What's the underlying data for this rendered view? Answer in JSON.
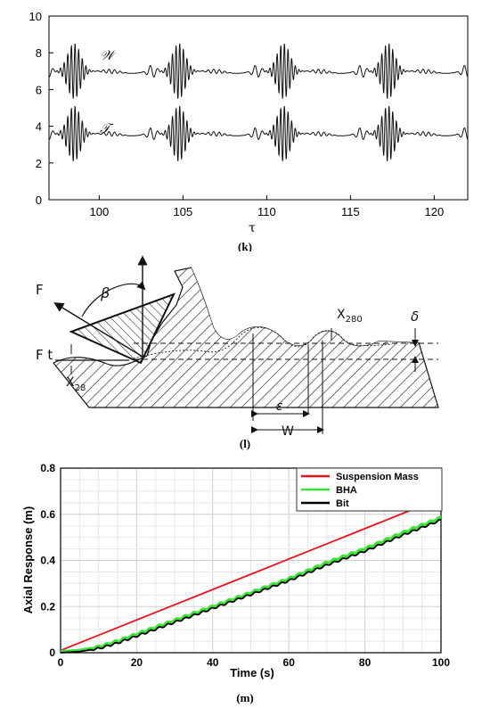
{
  "panel_k": {
    "caption": "(k)",
    "chart_data": {
      "type": "line",
      "xlabel": "τ",
      "ylabel": "",
      "xlim": [
        97,
        122
      ],
      "ylim": [
        0,
        10
      ],
      "xticks": [
        100,
        105,
        110,
        115,
        120
      ],
      "yticks": [
        0,
        2,
        4,
        6,
        8,
        10
      ],
      "grid": false,
      "series": [
        {
          "name": "𝒲",
          "baseline": 7.0,
          "amplitude": 1.5
        },
        {
          "name": "𝒯",
          "baseline": 3.6,
          "amplitude": 1.5
        }
      ],
      "burst_centers": [
        98.5,
        104.8,
        111.0,
        117.3
      ],
      "period": 6.25
    }
  },
  "panel_l": {
    "caption": "(l)",
    "labels": {
      "force": "F",
      "angle": "β",
      "tangential_force": "F t",
      "x28": "X",
      "x28_sub": "28",
      "x280": "X",
      "x280_sub": "280",
      "delta": "δ",
      "epsilon": "ε",
      "w": "W"
    }
  },
  "panel_m": {
    "caption": "(m)",
    "chart_data": {
      "type": "line",
      "xlabel": "Time (s)",
      "ylabel": "Axial Response (m)",
      "xlim": [
        0,
        100
      ],
      "ylim": [
        0,
        0.8
      ],
      "xticks": [
        0,
        20,
        40,
        60,
        80,
        100
      ],
      "yticks": [
        0,
        0.2,
        0.4,
        0.6,
        0.8
      ],
      "grid": true,
      "legend_position": "top-right",
      "series": [
        {
          "name": "Suspension Mass",
          "color": "#e8141a",
          "x": [
            0,
            100
          ],
          "y": [
            0.01,
            0.67
          ]
        },
        {
          "name": "BHA",
          "color": "#3ee33a",
          "x": [
            0,
            5,
            10,
            15,
            20,
            30,
            40,
            50,
            60,
            70,
            80,
            90,
            100
          ],
          "y": [
            0.005,
            0.01,
            0.025,
            0.05,
            0.08,
            0.14,
            0.2,
            0.26,
            0.32,
            0.39,
            0.45,
            0.52,
            0.585
          ]
        },
        {
          "name": "Bit",
          "color": "#000000",
          "x": [
            0,
            5,
            10,
            15,
            20,
            30,
            40,
            50,
            60,
            70,
            80,
            90,
            100
          ],
          "y": [
            0.0,
            0.005,
            0.018,
            0.042,
            0.072,
            0.132,
            0.192,
            0.252,
            0.312,
            0.38,
            0.44,
            0.51,
            0.575
          ]
        }
      ]
    }
  }
}
